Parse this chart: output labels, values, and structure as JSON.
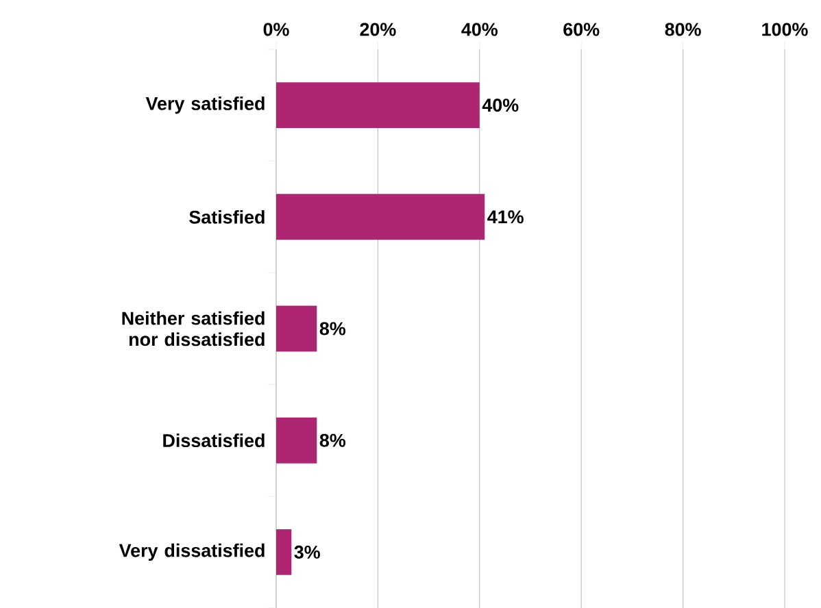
{
  "chart_data": {
    "type": "bar",
    "orientation": "horizontal",
    "categories": [
      "Very satisfied",
      "Satisfied",
      "Neither satisfied nor dissatisfied",
      "Dissatisfied",
      "Very dissatisfied"
    ],
    "values": [
      40,
      41,
      8,
      8,
      3
    ],
    "value_labels": [
      "40%",
      "41%",
      "8%",
      "8%",
      "3%"
    ],
    "color": "#ae2572",
    "xlim": [
      0,
      100
    ],
    "xticks": [
      {
        "value": 0,
        "label": "0%"
      },
      {
        "value": 20,
        "label": "20%"
      },
      {
        "value": 40,
        "label": "40%"
      },
      {
        "value": 60,
        "label": "60%"
      },
      {
        "value": 80,
        "label": "80%"
      },
      {
        "value": 100,
        "label": "100%"
      }
    ],
    "grid": "x"
  }
}
